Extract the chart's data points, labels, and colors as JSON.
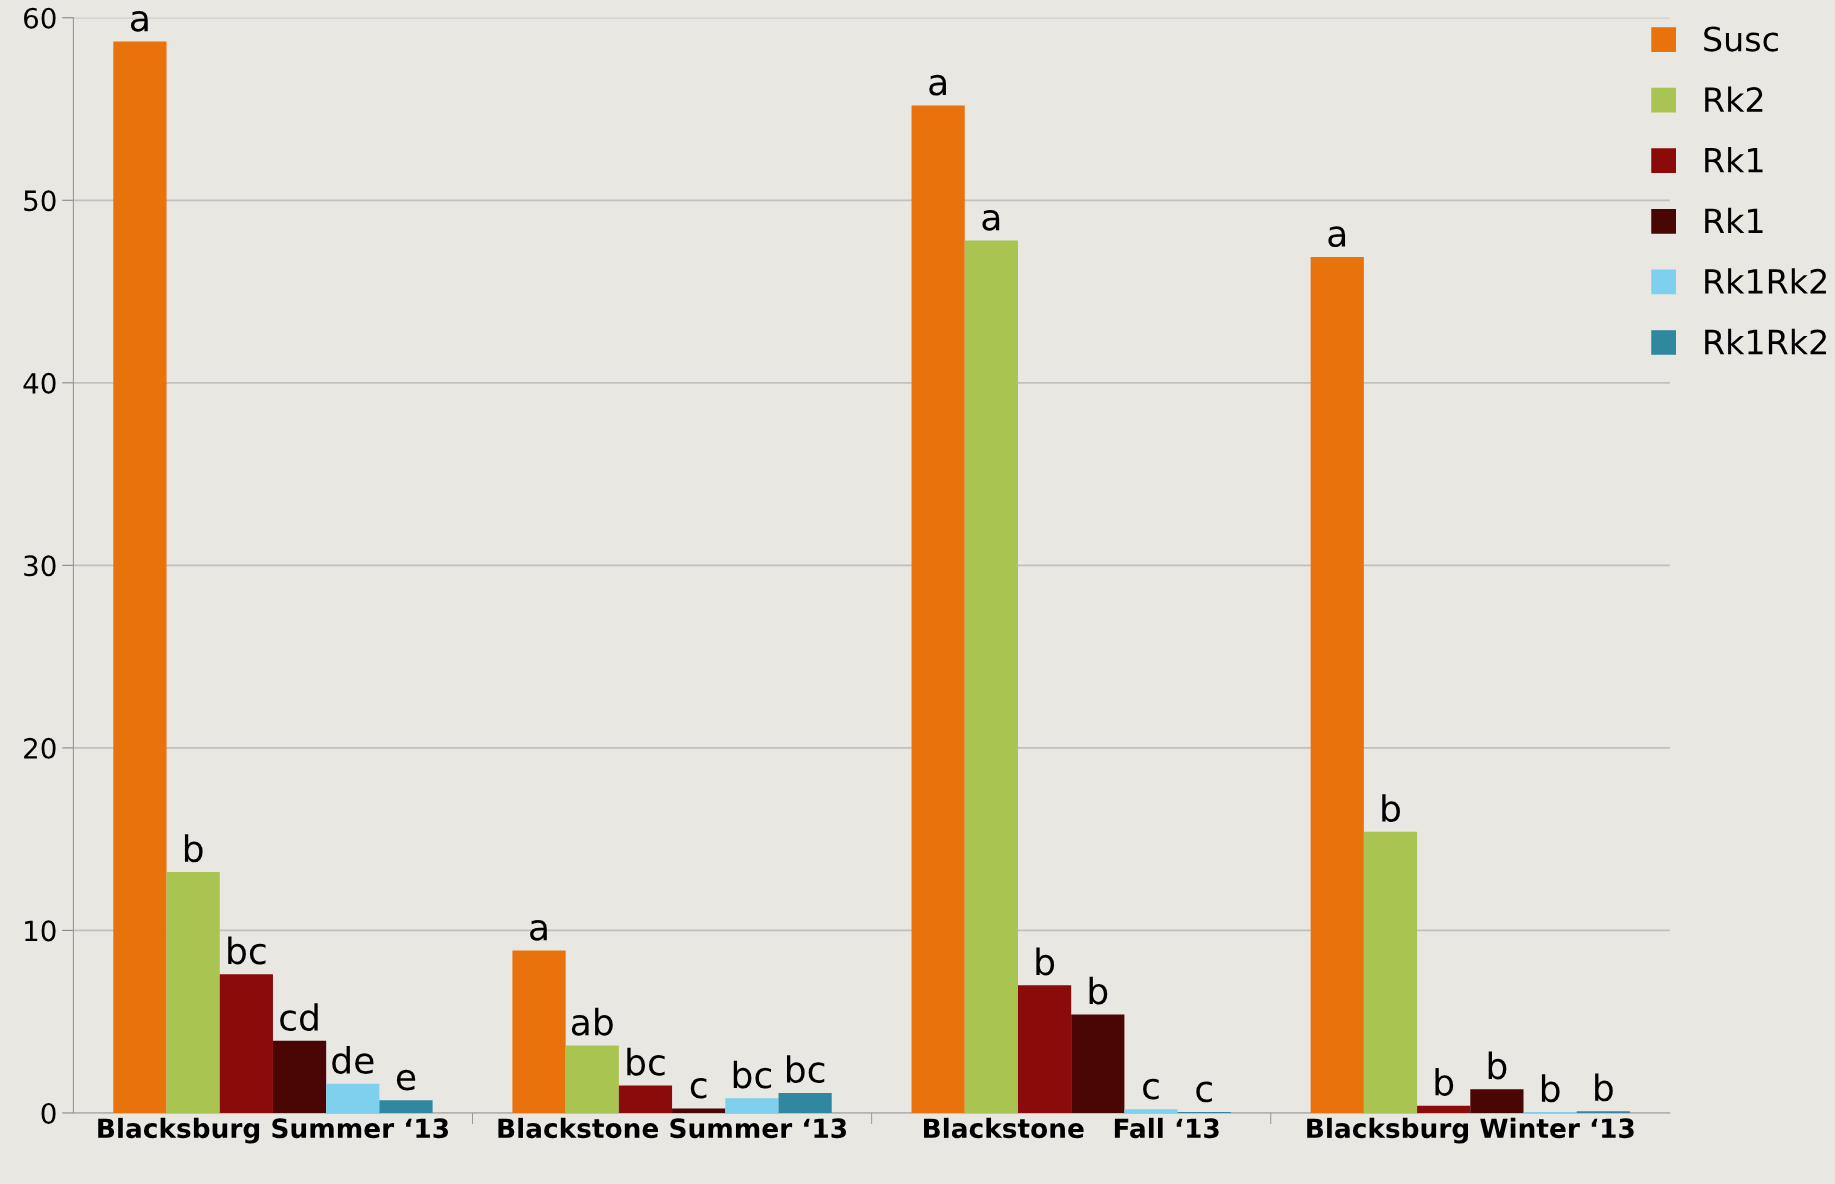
{
  "chart_data": {
    "type": "bar",
    "categories": [
      "Blacksburg Summer ‘13",
      "Blackstone Summer ‘13",
      "Blackstone   Fall ‘13",
      "Blacksburg Winter ‘13"
    ],
    "series": [
      {
        "name": "Susc",
        "color": "#e8720c",
        "values": [
          58.7,
          8.9,
          55.2,
          46.9
        ],
        "value_labels": [
          "a",
          "a",
          "a",
          "a"
        ]
      },
      {
        "name": "Rk2",
        "color": "#a9c451",
        "values": [
          13.2,
          3.7,
          47.8,
          15.4
        ],
        "value_labels": [
          "b",
          "ab",
          "a",
          "b"
        ]
      },
      {
        "name": "Rk1",
        "color": "#8b0a0a",
        "values": [
          7.6,
          1.5,
          7.0,
          0.4
        ],
        "value_labels": [
          "bc",
          "bc",
          "b",
          "b"
        ]
      },
      {
        "name": "Rk1",
        "color": "#4a0505",
        "values": [
          3.95,
          0.25,
          5.4,
          1.3
        ],
        "value_labels": [
          "cd",
          "c",
          "b",
          "b"
        ]
      },
      {
        "name": "Rk1Rk2",
        "color": "#7fd0ee",
        "values": [
          1.6,
          0.8,
          0.2,
          0.05
        ],
        "value_labels": [
          "de",
          "bc",
          "c",
          "b"
        ]
      },
      {
        "name": "Rk1Rk2",
        "color": "#2f88a0",
        "values": [
          0.7,
          1.1,
          0.05,
          0.1
        ],
        "value_labels": [
          "e",
          "bc",
          "c",
          "b"
        ]
      }
    ],
    "ylim": [
      0,
      60
    ],
    "yticks": [
      0,
      10,
      20,
      30,
      40,
      50,
      60
    ],
    "grid": "y",
    "legend": "top right"
  }
}
